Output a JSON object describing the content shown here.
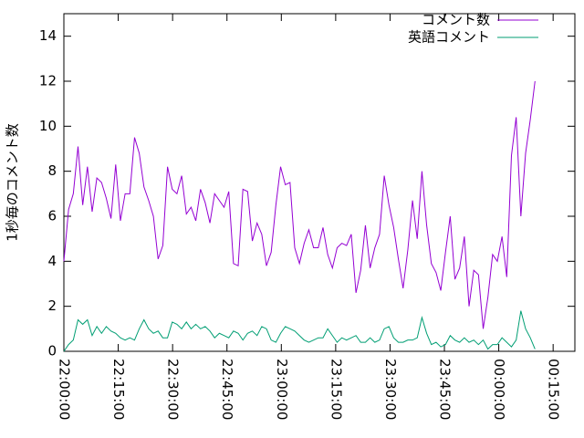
{
  "chart_data": {
    "type": "line",
    "y_label": "1秒毎のコメント数",
    "x": [
      0,
      78,
      156,
      234,
      312,
      390,
      468,
      546,
      624,
      702,
      780,
      858,
      936,
      1014,
      1092,
      1170,
      1248,
      1326,
      1404,
      1482,
      1560,
      1638,
      1716,
      1794,
      1872,
      1950,
      2028,
      2106,
      2184,
      2262,
      2340,
      2418,
      2496,
      2574,
      2652,
      2730,
      2808,
      2886,
      2964,
      3042,
      3120,
      3198,
      3276,
      3354,
      3432,
      3510,
      3588,
      3666,
      3744,
      3822,
      3900,
      3978,
      4056,
      4134,
      4212,
      4290,
      4368,
      4446,
      4524,
      4602,
      4680,
      4758,
      4836,
      4914,
      4992,
      5070,
      5148,
      5226,
      5304,
      5382,
      5460,
      5538,
      5616,
      5694,
      5772,
      5850,
      5928,
      6006,
      6084,
      6162,
      6240,
      6318,
      6396,
      6474,
      6552,
      6630,
      6708,
      6786,
      6864,
      6942,
      7020,
      7098,
      7176,
      7254,
      7332,
      7410,
      7488,
      7566,
      7644,
      7722,
      7800
    ],
    "series": [
      {
        "name": "コメント数",
        "color": "#9400d3",
        "values": [
          4,
          6.3,
          7,
          9.1,
          6.5,
          8.2,
          6.2,
          7.7,
          7.5,
          6.8,
          5.9,
          8.3,
          5.8,
          7,
          7,
          9.5,
          8.8,
          7.3,
          6.7,
          6,
          4.1,
          4.7,
          8.2,
          7.2,
          7,
          7.8,
          6.1,
          6.4,
          5.8,
          7.2,
          6.6,
          5.7,
          7,
          6.7,
          6.4,
          7.1,
          3.9,
          3.8,
          7.2,
          7.1,
          4.9,
          5.7,
          5.2,
          3.8,
          4.4,
          6.5,
          8.2,
          7.4,
          7.5,
          4.6,
          3.9,
          4.8,
          5.4,
          4.6,
          4.6,
          5.5,
          4.3,
          3.7,
          4.6,
          4.8,
          4.7,
          5.2,
          2.6,
          3.6,
          5.6,
          3.7,
          4.6,
          5.2,
          7.8,
          6.5,
          5.5,
          4.1,
          2.8,
          4.5,
          6.7,
          5,
          8,
          5.6,
          3.9,
          3.5,
          2.7,
          4.4,
          6,
          3.2,
          3.7,
          5.1,
          2,
          3.6,
          3.4,
          1,
          2.4,
          4.3,
          4,
          5.1,
          3.3,
          8.7,
          10.4,
          6,
          8.8,
          10.3,
          12
        ]
      },
      {
        "name": "英語コメント",
        "color": "#009e73",
        "values": [
          0,
          0.3,
          0.5,
          1.4,
          1.2,
          1.4,
          0.7,
          1.1,
          0.8,
          1.1,
          0.9,
          0.8,
          0.6,
          0.5,
          0.6,
          0.5,
          1,
          1.4,
          1,
          0.8,
          0.9,
          0.6,
          0.6,
          1.3,
          1.2,
          1,
          1.3,
          1,
          1.2,
          1,
          1.1,
          0.9,
          0.6,
          0.8,
          0.7,
          0.6,
          0.9,
          0.8,
          0.5,
          0.8,
          0.9,
          0.7,
          1.1,
          1,
          0.5,
          0.4,
          0.8,
          1.1,
          1,
          0.9,
          0.7,
          0.5,
          0.4,
          0.5,
          0.6,
          0.6,
          1,
          0.7,
          0.4,
          0.6,
          0.5,
          0.6,
          0.7,
          0.4,
          0.4,
          0.6,
          0.4,
          0.5,
          1,
          1.1,
          0.6,
          0.4,
          0.4,
          0.5,
          0.5,
          0.6,
          1.5,
          0.8,
          0.3,
          0.4,
          0.2,
          0.3,
          0.7,
          0.5,
          0.4,
          0.6,
          0.4,
          0.5,
          0.3,
          0.5,
          0.1,
          0.3,
          0.3,
          0.6,
          0.4,
          0.2,
          0.5,
          1.8,
          1,
          0.6,
          0.1
        ]
      }
    ],
    "xlim": [
      0,
      8460
    ],
    "xticks": [
      {
        "value": 0,
        "label": "22:00:00"
      },
      {
        "value": 900,
        "label": "22:15:00"
      },
      {
        "value": 1800,
        "label": "22:30:00"
      },
      {
        "value": 2700,
        "label": "22:45:00"
      },
      {
        "value": 3600,
        "label": "23:00:00"
      },
      {
        "value": 4500,
        "label": "23:15:00"
      },
      {
        "value": 5400,
        "label": "23:30:00"
      },
      {
        "value": 6300,
        "label": "23:45:00"
      },
      {
        "value": 7200,
        "label": "00:00:00"
      },
      {
        "value": 8100,
        "label": "00:15:00"
      }
    ],
    "ylim": [
      0,
      15
    ],
    "yticks": [
      0,
      2,
      4,
      6,
      8,
      10,
      12,
      14
    ]
  }
}
